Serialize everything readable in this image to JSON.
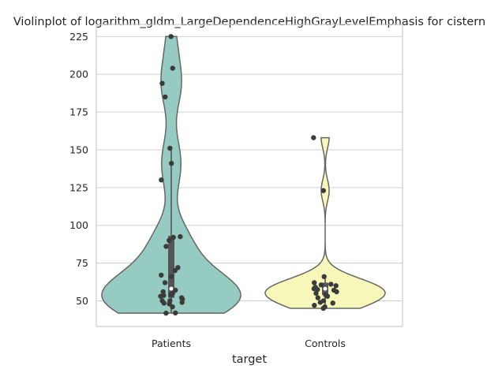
{
  "chart_data": {
    "type": "violin",
    "title": "Violinplot of logarithm_gldm_LargeDependenceHighGrayLevelEmphasis for cistern",
    "xlabel": "target",
    "ylabel": "",
    "categories": [
      "Patients",
      "Controls"
    ],
    "ylim": [
      33,
      233
    ],
    "yticks": [
      50,
      75,
      100,
      125,
      150,
      175,
      200,
      225
    ],
    "grid": "horizontal",
    "colors": {
      "Patients": "#95cbc0",
      "Controls": "#f7f7b9",
      "outline": "#666666",
      "points": "#3b3b3b",
      "grid": "#d0d0d0",
      "frame": "#cccccc"
    },
    "series": [
      {
        "category": "Patients",
        "range": [
          41.8,
          225
        ],
        "box": {
          "q1": 52,
          "median": 58,
          "q3": 93,
          "whisker_low": 41.8,
          "whisker_high": 151
        },
        "points": [
          225,
          204,
          194,
          185,
          151,
          141,
          130,
          92.5,
          92,
          90,
          86,
          72,
          70,
          67,
          66,
          62,
          57,
          56,
          55,
          54,
          53.5,
          53,
          52,
          51,
          50,
          50,
          49,
          48.5,
          48,
          46,
          42,
          41.8
        ]
      },
      {
        "category": "Controls",
        "range": [
          45,
          158
        ],
        "box": {
          "q1": 54,
          "median": 58,
          "q3": 62,
          "whisker_low": 45,
          "whisker_high": 66
        },
        "points": [
          158,
          123,
          66,
          62,
          61,
          60.5,
          60,
          59,
          58,
          57.5,
          57,
          56,
          55,
          54,
          53,
          52,
          50,
          49,
          48.5,
          47,
          46,
          45
        ]
      }
    ]
  }
}
